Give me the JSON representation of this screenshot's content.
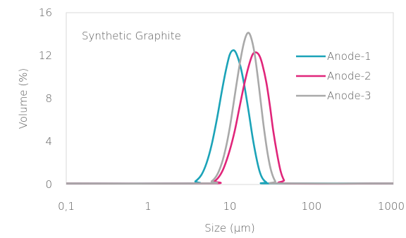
{
  "chart_data": {
    "type": "line",
    "annotation": "Synthetic Graphite",
    "xlabel": "Size (µm)",
    "ylabel": "Volume (%)",
    "x_scale": "log",
    "xlim": [
      0.1,
      1000
    ],
    "ylim": [
      0,
      16
    ],
    "x_ticks": [
      0.1,
      1,
      10,
      100,
      1000
    ],
    "x_tick_labels": [
      "0,1",
      "1",
      "10",
      "100",
      "1000"
    ],
    "y_ticks": [
      0,
      4,
      8,
      12,
      16
    ],
    "y_tick_labels": [
      "0",
      "4",
      "8",
      "12",
      "16"
    ],
    "grid": false,
    "legend_position": "right",
    "series": [
      {
        "name": "Anode-1",
        "color": "#1ba3b8",
        "x": [
          0.1,
          3.2,
          3.8,
          4.5,
          5.2,
          6,
          7,
          8,
          9,
          10,
          11,
          12,
          13.5,
          15,
          17,
          19,
          21,
          23,
          25,
          28,
          32,
          1000
        ],
        "y": [
          0.1,
          0.1,
          0.3,
          0.9,
          2.0,
          3.7,
          6.2,
          8.7,
          10.7,
          12.1,
          12.5,
          12.2,
          11.0,
          9.3,
          6.8,
          4.4,
          2.6,
          1.3,
          0.6,
          0.2,
          0.1,
          0.1
        ]
      },
      {
        "name": "Anode-2",
        "color": "#e0257a",
        "x": [
          0.1,
          5.5,
          6.5,
          7.5,
          8.5,
          10,
          11.5,
          13,
          15,
          17,
          19,
          21,
          23,
          25,
          28,
          31,
          34,
          38,
          42,
          46,
          50,
          1000
        ],
        "y": [
          0.1,
          0.1,
          0.3,
          0.8,
          1.6,
          3.2,
          5.0,
          7.0,
          9.3,
          11.0,
          12.1,
          12.3,
          12.0,
          11.2,
          9.5,
          7.3,
          5.0,
          2.8,
          1.2,
          0.4,
          0.1,
          0.1
        ]
      },
      {
        "name": "Anode-3",
        "color": "#a9a9a9",
        "x": [
          0.1,
          5,
          6,
          7,
          8,
          9,
          10,
          11,
          12,
          13.5,
          15,
          16.5,
          18,
          20,
          22,
          24,
          26,
          29,
          32,
          36,
          40,
          1000
        ],
        "y": [
          0.1,
          0.1,
          0.3,
          0.9,
          2.0,
          3.5,
          5.3,
          7.3,
          9.2,
          11.6,
          13.3,
          14.1,
          13.8,
          12.3,
          10.0,
          7.6,
          5.4,
          2.9,
          1.3,
          0.3,
          0.1,
          0.1
        ]
      }
    ]
  }
}
